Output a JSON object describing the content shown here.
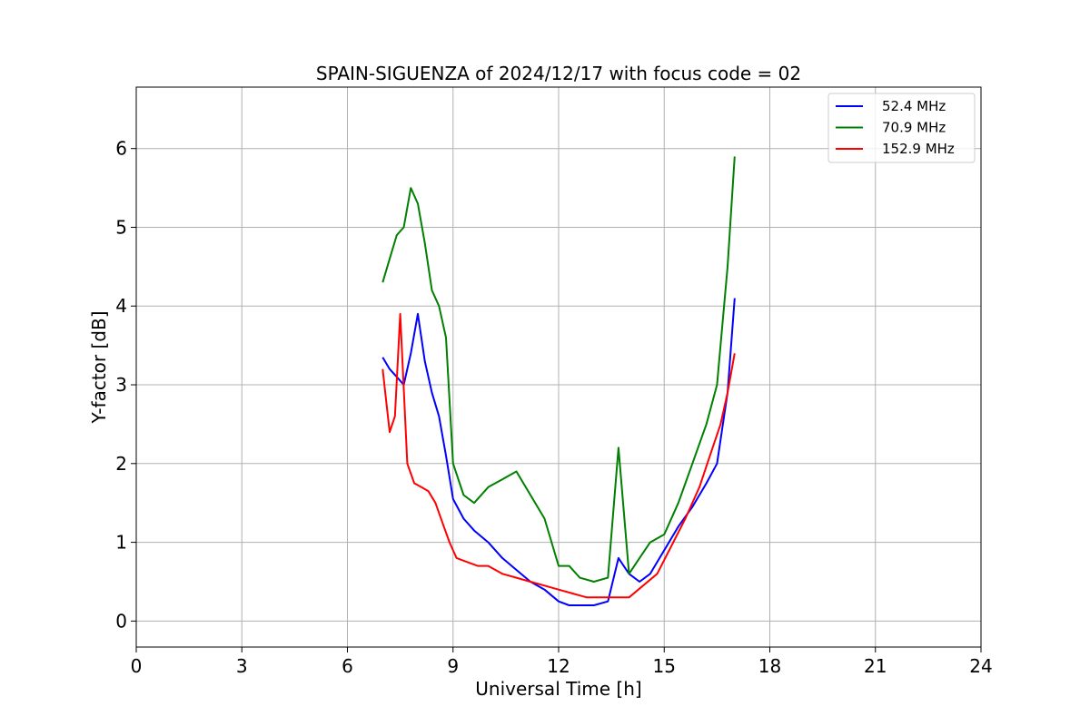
{
  "chart_data": {
    "type": "line",
    "title": "SPAIN-SIGUENZA of 2024/12/17 with focus code = 02",
    "xlabel": "Universal Time [h]",
    "ylabel": "Y-factor [dB]",
    "xlim": [
      0,
      24
    ],
    "ylim": [
      -0.33,
      6.78
    ],
    "xticks": [
      0,
      3,
      6,
      9,
      12,
      15,
      18,
      21,
      24
    ],
    "yticks": [
      0,
      1,
      2,
      3,
      4,
      5,
      6
    ],
    "grid": true,
    "legend_position": "top-right",
    "series": [
      {
        "name": " 52.4 MHz",
        "color": "#0000ff",
        "x": [
          7.0,
          7.2,
          7.4,
          7.6,
          7.8,
          8.0,
          8.2,
          8.4,
          8.6,
          8.8,
          9.0,
          9.3,
          9.6,
          10.0,
          10.4,
          10.8,
          11.2,
          11.6,
          12.0,
          12.3,
          12.6,
          13.0,
          13.4,
          13.7,
          14.0,
          14.3,
          14.6,
          15.0,
          15.4,
          15.8,
          16.2,
          16.5,
          16.8,
          17.0
        ],
        "y": [
          3.35,
          3.2,
          3.1,
          3.0,
          3.4,
          3.9,
          3.3,
          2.9,
          2.6,
          2.1,
          1.55,
          1.3,
          1.15,
          1.0,
          0.8,
          0.65,
          0.5,
          0.4,
          0.25,
          0.2,
          0.2,
          0.2,
          0.25,
          0.8,
          0.6,
          0.5,
          0.6,
          0.9,
          1.2,
          1.45,
          1.75,
          2.0,
          2.9,
          4.1
        ]
      },
      {
        "name": " 70.9 MHz",
        "color": "#008000",
        "x": [
          7.0,
          7.2,
          7.4,
          7.6,
          7.8,
          8.0,
          8.2,
          8.4,
          8.6,
          8.8,
          9.0,
          9.3,
          9.6,
          10.0,
          10.4,
          10.8,
          11.2,
          11.6,
          12.0,
          12.3,
          12.6,
          13.0,
          13.4,
          13.7,
          14.0,
          14.3,
          14.6,
          15.0,
          15.4,
          15.8,
          16.2,
          16.5,
          16.8,
          17.0
        ],
        "y": [
          4.3,
          4.6,
          4.9,
          5.0,
          5.5,
          5.3,
          4.8,
          4.2,
          4.0,
          3.6,
          2.0,
          1.6,
          1.5,
          1.7,
          1.8,
          1.9,
          1.6,
          1.3,
          0.7,
          0.7,
          0.55,
          0.5,
          0.55,
          2.2,
          0.6,
          0.8,
          1.0,
          1.1,
          1.5,
          2.0,
          2.5,
          3.0,
          4.5,
          5.9
        ]
      },
      {
        "name": " 152.9 MHz",
        "color": "#ff0000",
        "x": [
          7.0,
          7.1,
          7.2,
          7.35,
          7.5,
          7.7,
          7.9,
          8.1,
          8.3,
          8.5,
          8.7,
          8.9,
          9.1,
          9.4,
          9.7,
          10.0,
          10.4,
          10.8,
          11.2,
          11.6,
          12.0,
          12.4,
          12.8,
          13.2,
          13.6,
          14.0,
          14.4,
          14.8,
          15.2,
          15.6,
          16.0,
          16.3,
          16.6,
          16.8,
          17.0
        ],
        "y": [
          3.2,
          2.8,
          2.4,
          2.6,
          3.9,
          2.0,
          1.75,
          1.7,
          1.65,
          1.5,
          1.25,
          1.0,
          0.8,
          0.75,
          0.7,
          0.7,
          0.6,
          0.55,
          0.5,
          0.45,
          0.4,
          0.35,
          0.3,
          0.3,
          0.3,
          0.3,
          0.45,
          0.6,
          0.95,
          1.3,
          1.7,
          2.1,
          2.5,
          2.9,
          3.4
        ]
      }
    ]
  }
}
